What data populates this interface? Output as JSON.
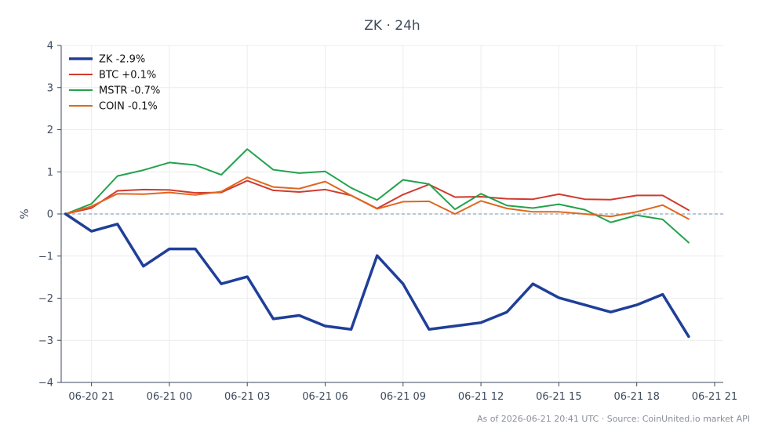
{
  "chart_data": {
    "type": "line",
    "title": "ZK · 24h",
    "xlabel": "",
    "ylabel": "%",
    "ylim": [
      -4,
      4
    ],
    "yticks": [
      -4,
      -3,
      -2,
      -1,
      0,
      1,
      2,
      3,
      4
    ],
    "ytick_labels": [
      "−4",
      "−3",
      "−2",
      "−1",
      "0",
      "1",
      "2",
      "3",
      "4"
    ],
    "xlim": [
      "06-20 19:50",
      "06-21 21:20"
    ],
    "xticks": [
      "06-20 21:00",
      "06-21 00:00",
      "06-21 03:00",
      "06-21 06:00",
      "06-21 09:00",
      "06-21 12:00",
      "06-21 15:00",
      "06-21 18:00",
      "06-21 21:00"
    ],
    "xtick_labels": [
      "06-20 21",
      "06-21 00",
      "06-21 03",
      "06-21 06",
      "06-21 09",
      "06-21 12",
      "06-21 15",
      "06-21 18",
      "06-21 21"
    ],
    "x": [
      "06-20 20:00",
      "06-20 21:00",
      "06-20 22:00",
      "06-20 23:00",
      "06-21 00:00",
      "06-21 01:00",
      "06-21 02:00",
      "06-21 03:00",
      "06-21 04:00",
      "06-21 05:00",
      "06-21 06:00",
      "06-21 07:00",
      "06-21 08:00",
      "06-21 09:00",
      "06-21 10:00",
      "06-21 11:00",
      "06-21 12:00",
      "06-21 13:00",
      "06-21 14:00",
      "06-21 15:00",
      "06-21 16:00",
      "06-21 17:00",
      "06-21 18:00",
      "06-21 19:00",
      "06-21 20:00"
    ],
    "reference_line": {
      "y": 0,
      "color": "#8fa7c4",
      "style": "dashed"
    },
    "grid": true,
    "legend_position": "top-left",
    "series": [
      {
        "name": "ZK -2.9%",
        "color": "#1f3f99",
        "width": 3.5,
        "values": [
          0.0,
          -0.41,
          -0.24,
          -1.24,
          -0.83,
          -0.83,
          -1.66,
          -1.49,
          -2.49,
          -2.41,
          -2.66,
          -2.74,
          -0.99,
          -1.66,
          -2.74,
          -2.66,
          -2.58,
          -2.33,
          -1.66,
          -1.99,
          -2.16,
          -2.33,
          -2.16,
          -1.91,
          -2.91
        ]
      },
      {
        "name": "BTC +0.1%",
        "color": "#d03a2f",
        "width": 2,
        "values": [
          0.0,
          0.14,
          0.55,
          0.58,
          0.57,
          0.5,
          0.51,
          0.79,
          0.56,
          0.52,
          0.58,
          0.44,
          0.13,
          0.46,
          0.7,
          0.4,
          0.41,
          0.36,
          0.35,
          0.47,
          0.35,
          0.34,
          0.44,
          0.44,
          0.09
        ]
      },
      {
        "name": "MSTR -0.7%",
        "color": "#23a24d",
        "width": 2,
        "values": [
          0.0,
          0.24,
          0.9,
          1.04,
          1.22,
          1.16,
          0.93,
          1.54,
          1.05,
          0.97,
          1.01,
          0.62,
          0.33,
          0.81,
          0.71,
          0.11,
          0.48,
          0.2,
          0.14,
          0.23,
          0.1,
          -0.2,
          -0.03,
          -0.13,
          -0.68
        ]
      },
      {
        "name": "COIN -0.1%",
        "color": "#e0661c",
        "width": 2,
        "values": [
          0.0,
          0.18,
          0.48,
          0.47,
          0.51,
          0.45,
          0.53,
          0.87,
          0.64,
          0.6,
          0.77,
          0.44,
          0.12,
          0.29,
          0.3,
          0.0,
          0.31,
          0.13,
          0.05,
          0.05,
          0.0,
          -0.06,
          0.05,
          0.21,
          -0.12
        ]
      }
    ]
  },
  "footer": {
    "source_note": "As of 2026-06-21 20:41 UTC · Source: CoinUnited.io market API"
  }
}
